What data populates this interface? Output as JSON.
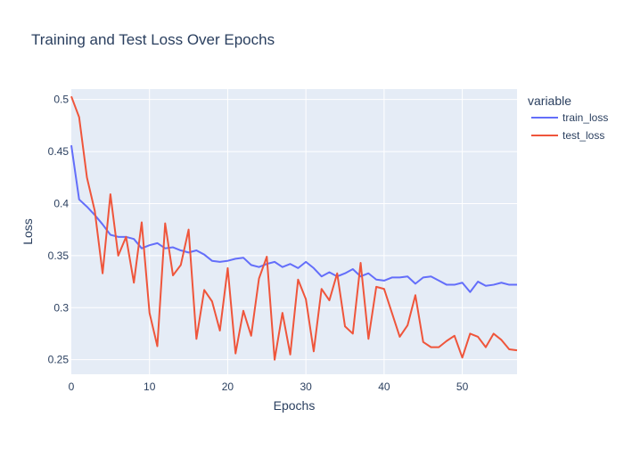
{
  "chart_data": {
    "type": "line",
    "title": "Training and Test Loss Over Epochs",
    "xlabel": "Epochs",
    "ylabel": "Loss",
    "xlim": [
      0,
      57
    ],
    "ylim": [
      0.236,
      0.51
    ],
    "x_ticks": [
      0,
      10,
      20,
      30,
      40,
      50
    ],
    "y_ticks": [
      0.25,
      0.3,
      0.35,
      0.4,
      0.45,
      0.5
    ],
    "y_tick_labels": [
      "0.25",
      "0.3",
      "0.35",
      "0.4",
      "0.45",
      "0.5"
    ],
    "grid": true,
    "legend": {
      "title": "variable",
      "placement": "top-right"
    },
    "x": [
      0,
      1,
      2,
      3,
      4,
      5,
      6,
      7,
      8,
      9,
      10,
      11,
      12,
      13,
      14,
      15,
      16,
      17,
      18,
      19,
      20,
      21,
      22,
      23,
      24,
      25,
      26,
      27,
      28,
      29,
      30,
      31,
      32,
      33,
      34,
      35,
      36,
      37,
      38,
      39,
      40,
      41,
      42,
      43,
      44,
      45,
      46,
      47,
      48,
      49,
      50,
      51,
      52,
      53,
      54,
      55,
      56,
      57
    ],
    "series": [
      {
        "name": "train_loss",
        "color": "#636efa",
        "values": [
          0.456,
          0.404,
          0.397,
          0.389,
          0.38,
          0.37,
          0.368,
          0.368,
          0.366,
          0.357,
          0.36,
          0.362,
          0.357,
          0.358,
          0.355,
          0.353,
          0.355,
          0.351,
          0.345,
          0.344,
          0.345,
          0.347,
          0.348,
          0.341,
          0.339,
          0.342,
          0.344,
          0.339,
          0.342,
          0.338,
          0.344,
          0.338,
          0.33,
          0.334,
          0.33,
          0.333,
          0.337,
          0.33,
          0.333,
          0.327,
          0.326,
          0.329,
          0.329,
          0.33,
          0.323,
          0.329,
          0.33,
          0.326,
          0.322,
          0.322,
          0.324,
          0.315,
          0.325,
          0.321,
          0.322,
          0.324,
          0.322,
          0.322
        ]
      },
      {
        "name": "test_loss",
        "color": "#ef553b",
        "values": [
          0.503,
          0.483,
          0.425,
          0.393,
          0.333,
          0.409,
          0.35,
          0.368,
          0.324,
          0.382,
          0.295,
          0.263,
          0.381,
          0.331,
          0.341,
          0.375,
          0.27,
          0.317,
          0.306,
          0.278,
          0.338,
          0.256,
          0.297,
          0.273,
          0.328,
          0.349,
          0.25,
          0.295,
          0.255,
          0.327,
          0.308,
          0.258,
          0.318,
          0.307,
          0.333,
          0.282,
          0.275,
          0.343,
          0.27,
          0.32,
          0.318,
          0.295,
          0.272,
          0.283,
          0.312,
          0.267,
          0.262,
          0.262,
          0.268,
          0.273,
          0.252,
          0.275,
          0.272,
          0.262,
          0.275,
          0.269,
          0.26,
          0.259
        ]
      }
    ]
  }
}
